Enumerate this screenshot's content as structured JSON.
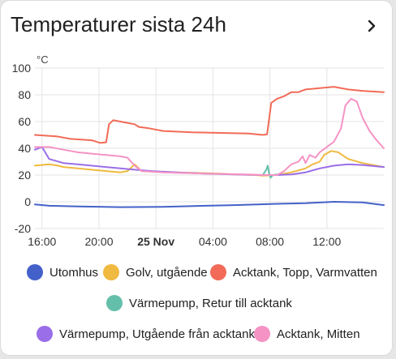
{
  "card": {
    "title": "Temperaturer sista 24h",
    "more_icon": "chevron-right-icon"
  },
  "chart_data": {
    "type": "line",
    "unit": "°C",
    "ylim": [
      -20,
      100
    ],
    "y_ticks": [
      100,
      80,
      60,
      40,
      20,
      0,
      -20
    ],
    "x_ticks": [
      {
        "t": 0.5,
        "label": "16:00",
        "bold": false
      },
      {
        "t": 4.5,
        "label": "20:00",
        "bold": false
      },
      {
        "t": 8.5,
        "label": "25 Nov",
        "bold": true
      },
      {
        "t": 12.5,
        "label": "04:00",
        "bold": false
      },
      {
        "t": 16.5,
        "label": "08:00",
        "bold": false
      },
      {
        "t": 20.5,
        "label": "12:00",
        "bold": false
      }
    ],
    "xlim": [
      0,
      24.5
    ],
    "grid": true,
    "legend_position": "bottom",
    "series": [
      {
        "name": "Utomhus",
        "color": "#4461c9",
        "points": [
          [
            0,
            -2
          ],
          [
            1,
            -3
          ],
          [
            3,
            -3.5
          ],
          [
            6,
            -4
          ],
          [
            9,
            -3.8
          ],
          [
            12,
            -3
          ],
          [
            14,
            -2.5
          ],
          [
            17,
            -1.5
          ],
          [
            19,
            -1
          ],
          [
            21,
            0
          ],
          [
            23,
            -0.5
          ],
          [
            24.5,
            -2.5
          ]
        ]
      },
      {
        "name": "Golv, utgående",
        "color": "#f0b940",
        "points": [
          [
            0,
            27
          ],
          [
            1,
            28
          ],
          [
            1.6,
            27
          ],
          [
            2,
            26
          ],
          [
            3,
            25
          ],
          [
            5,
            23
          ],
          [
            6,
            22
          ],
          [
            6.5,
            23
          ],
          [
            7,
            28
          ],
          [
            7.5,
            23
          ],
          [
            10,
            22
          ],
          [
            13,
            21
          ],
          [
            14,
            20.5
          ],
          [
            15.5,
            20
          ],
          [
            16,
            19.5
          ],
          [
            17,
            20
          ],
          [
            18,
            22
          ],
          [
            19,
            25
          ],
          [
            19.5,
            28
          ],
          [
            20,
            30
          ],
          [
            20.3,
            35
          ],
          [
            20.8,
            38
          ],
          [
            21.3,
            37
          ],
          [
            22,
            32
          ],
          [
            23,
            29
          ],
          [
            24.5,
            26
          ]
        ]
      },
      {
        "name": "Acktank, Topp, Varmvatten",
        "color": "#f26b58",
        "points": [
          [
            0,
            50
          ],
          [
            1.5,
            49
          ],
          [
            2.5,
            47
          ],
          [
            4,
            46
          ],
          [
            4.6,
            44
          ],
          [
            5,
            44.5
          ],
          [
            5.2,
            58
          ],
          [
            5.5,
            61
          ],
          [
            6,
            60
          ],
          [
            7,
            58
          ],
          [
            7.3,
            56
          ],
          [
            8,
            55
          ],
          [
            9,
            53
          ],
          [
            11,
            52
          ],
          [
            15,
            51
          ],
          [
            16,
            50
          ],
          [
            16.3,
            50.5
          ],
          [
            16.6,
            74
          ],
          [
            17,
            77
          ],
          [
            17.5,
            79
          ],
          [
            18,
            82
          ],
          [
            18.5,
            82
          ],
          [
            19,
            84
          ],
          [
            20,
            85
          ],
          [
            21,
            86
          ],
          [
            22,
            84
          ],
          [
            23,
            83
          ],
          [
            24.5,
            82
          ]
        ]
      },
      {
        "name": "Värmepump, Retur till acktank",
        "color": "#64bfaa",
        "points": [
          [
            16,
            20
          ],
          [
            16.25,
            24
          ],
          [
            16.35,
            27
          ],
          [
            16.45,
            21
          ],
          [
            16.55,
            18
          ],
          [
            16.7,
            20
          ],
          [
            17,
            20.5
          ]
        ]
      },
      {
        "name": "Värmepump, Utgående från acktank",
        "color": "#9a6ee8",
        "points": [
          [
            0,
            39
          ],
          [
            0.5,
            41
          ],
          [
            1,
            32
          ],
          [
            2,
            29
          ],
          [
            3,
            28
          ],
          [
            5,
            26
          ],
          [
            6,
            25
          ],
          [
            7,
            24
          ],
          [
            8.2,
            23
          ],
          [
            10,
            22
          ],
          [
            12,
            21
          ],
          [
            14,
            20.5
          ],
          [
            16,
            20
          ],
          [
            17,
            20
          ],
          [
            18,
            20.5
          ],
          [
            19,
            22
          ],
          [
            20,
            25
          ],
          [
            21,
            27
          ],
          [
            22,
            28
          ],
          [
            23,
            27.5
          ],
          [
            24.5,
            26
          ]
        ]
      },
      {
        "name": "Acktank, Mitten",
        "color": "#f593c5",
        "points": [
          [
            0,
            41
          ],
          [
            1,
            41
          ],
          [
            2,
            39
          ],
          [
            3,
            37
          ],
          [
            4,
            36
          ],
          [
            5,
            35
          ],
          [
            6,
            34
          ],
          [
            6.5,
            33
          ],
          [
            7,
            27
          ],
          [
            7.5,
            23
          ],
          [
            9,
            22
          ],
          [
            12,
            21
          ],
          [
            15,
            20.5
          ],
          [
            16,
            20
          ],
          [
            17,
            20
          ],
          [
            17.5,
            23
          ],
          [
            18,
            28
          ],
          [
            18.5,
            30
          ],
          [
            18.8,
            34
          ],
          [
            19,
            29
          ],
          [
            19.3,
            35
          ],
          [
            19.7,
            33
          ],
          [
            20,
            37
          ],
          [
            20.5,
            41
          ],
          [
            21,
            45
          ],
          [
            21.5,
            55
          ],
          [
            21.8,
            72
          ],
          [
            22.2,
            77
          ],
          [
            22.6,
            75
          ],
          [
            23,
            63
          ],
          [
            23.5,
            53
          ],
          [
            24,
            46
          ],
          [
            24.5,
            40
          ]
        ]
      }
    ]
  }
}
